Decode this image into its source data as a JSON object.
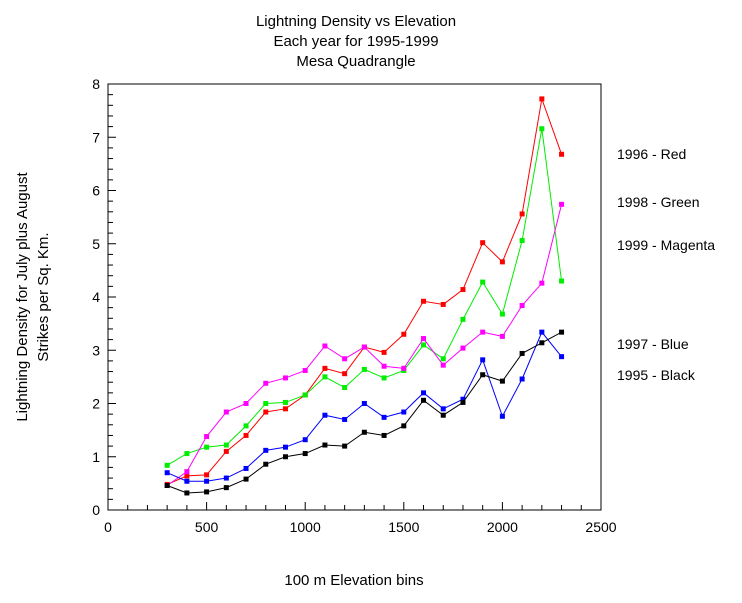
{
  "chart_data": {
    "type": "line",
    "title_lines": [
      "Lightning Density vs Elevation",
      "Each year for 1995-1999",
      "Mesa Quadrangle"
    ],
    "xlabel": "100 m Elevation bins",
    "ylabel_lines": [
      "Lightning Density for July plus August",
      "Strikes per Sq. Km."
    ],
    "xlim": [
      0,
      2500
    ],
    "ylim": [
      0,
      8
    ],
    "x_ticks": [
      "0",
      "500",
      "1000",
      "1500",
      "2000",
      "2500"
    ],
    "y_ticks": [
      "0",
      "1",
      "2",
      "3",
      "4",
      "5",
      "6",
      "7",
      "8"
    ],
    "grid": false,
    "legend_placement": "right",
    "x": [
      300,
      400,
      500,
      600,
      700,
      800,
      900,
      1000,
      1100,
      1200,
      1300,
      1400,
      1500,
      1600,
      1700,
      1800,
      1900,
      2000,
      2100,
      2200,
      2300
    ],
    "series": [
      {
        "name": "1996 - Red",
        "color": "#ff0000",
        "values": [
          0.48,
          0.64,
          0.66,
          1.1,
          1.4,
          1.84,
          1.9,
          2.16,
          2.66,
          2.56,
          3.06,
          2.96,
          3.3,
          3.92,
          3.86,
          4.14,
          5.02,
          4.66,
          5.56,
          7.72,
          6.68
        ]
      },
      {
        "name": "1998 - Green",
        "color": "#00ee00",
        "values": [
          0.84,
          1.06,
          1.18,
          1.22,
          1.58,
          2.0,
          2.02,
          2.16,
          2.5,
          2.3,
          2.64,
          2.48,
          2.62,
          3.1,
          2.84,
          3.58,
          4.28,
          3.68,
          5.06,
          7.16,
          4.3
        ]
      },
      {
        "name": "1999 - Magenta",
        "color": "#ff00ff",
        "values": [
          0.46,
          0.72,
          1.38,
          1.84,
          2.0,
          2.38,
          2.48,
          2.62,
          3.08,
          2.84,
          3.06,
          2.7,
          2.66,
          3.22,
          2.72,
          3.04,
          3.34,
          3.26,
          3.84,
          4.26,
          5.74
        ]
      },
      {
        "name": "1997 - Blue",
        "color": "#0000ff",
        "values": [
          0.7,
          0.54,
          0.54,
          0.6,
          0.78,
          1.12,
          1.18,
          1.32,
          1.78,
          1.7,
          2.0,
          1.74,
          1.84,
          2.2,
          1.9,
          2.08,
          2.82,
          1.76,
          2.46,
          3.34,
          2.88
        ]
      },
      {
        "name": "1995 - Black",
        "color": "#000000",
        "values": [
          0.46,
          0.32,
          0.34,
          0.42,
          0.58,
          0.86,
          1.0,
          1.06,
          1.22,
          1.2,
          1.46,
          1.4,
          1.58,
          2.06,
          1.78,
          2.02,
          2.54,
          2.42,
          2.94,
          3.14,
          3.34
        ]
      }
    ]
  }
}
